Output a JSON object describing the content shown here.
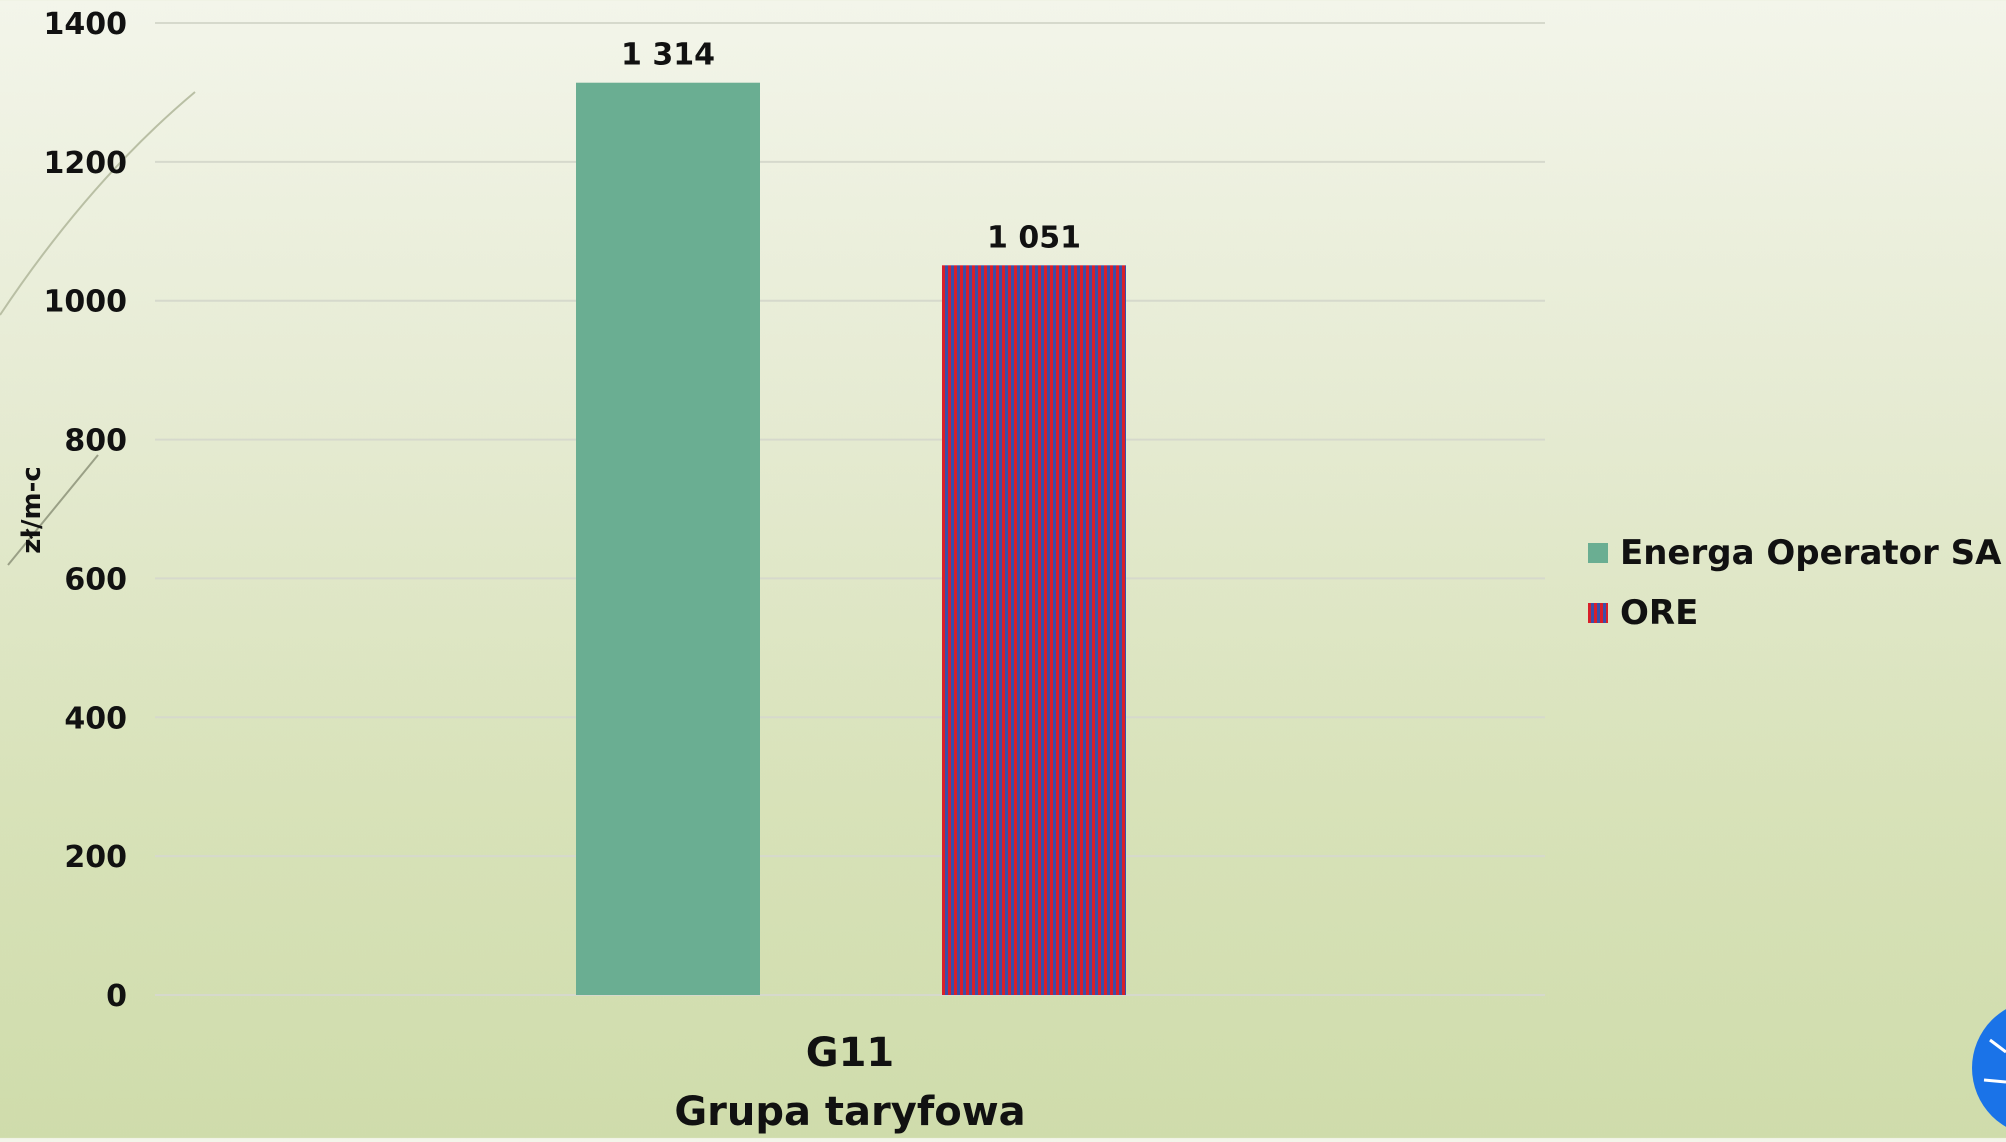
{
  "chart_data": {
    "type": "bar",
    "categories": [
      "G11"
    ],
    "series": [
      {
        "name": "Energa Operator SA",
        "values": [
          1314
        ],
        "color": "#6aae92",
        "pattern": "solid"
      },
      {
        "name": "ORE",
        "values": [
          1051
        ],
        "color": "#d81f2a",
        "color2": "#3a4fa8",
        "pattern": "vertical-stripes"
      }
    ],
    "data_labels": [
      "1 314",
      "1 051"
    ],
    "xlabel": "Grupa taryfowa",
    "ylabel": "zł/m-c",
    "ylim": [
      0,
      1400
    ],
    "yticks": [
      0,
      200,
      400,
      600,
      800,
      1000,
      1200,
      1400
    ],
    "grid": true,
    "legend_position": "right"
  }
}
